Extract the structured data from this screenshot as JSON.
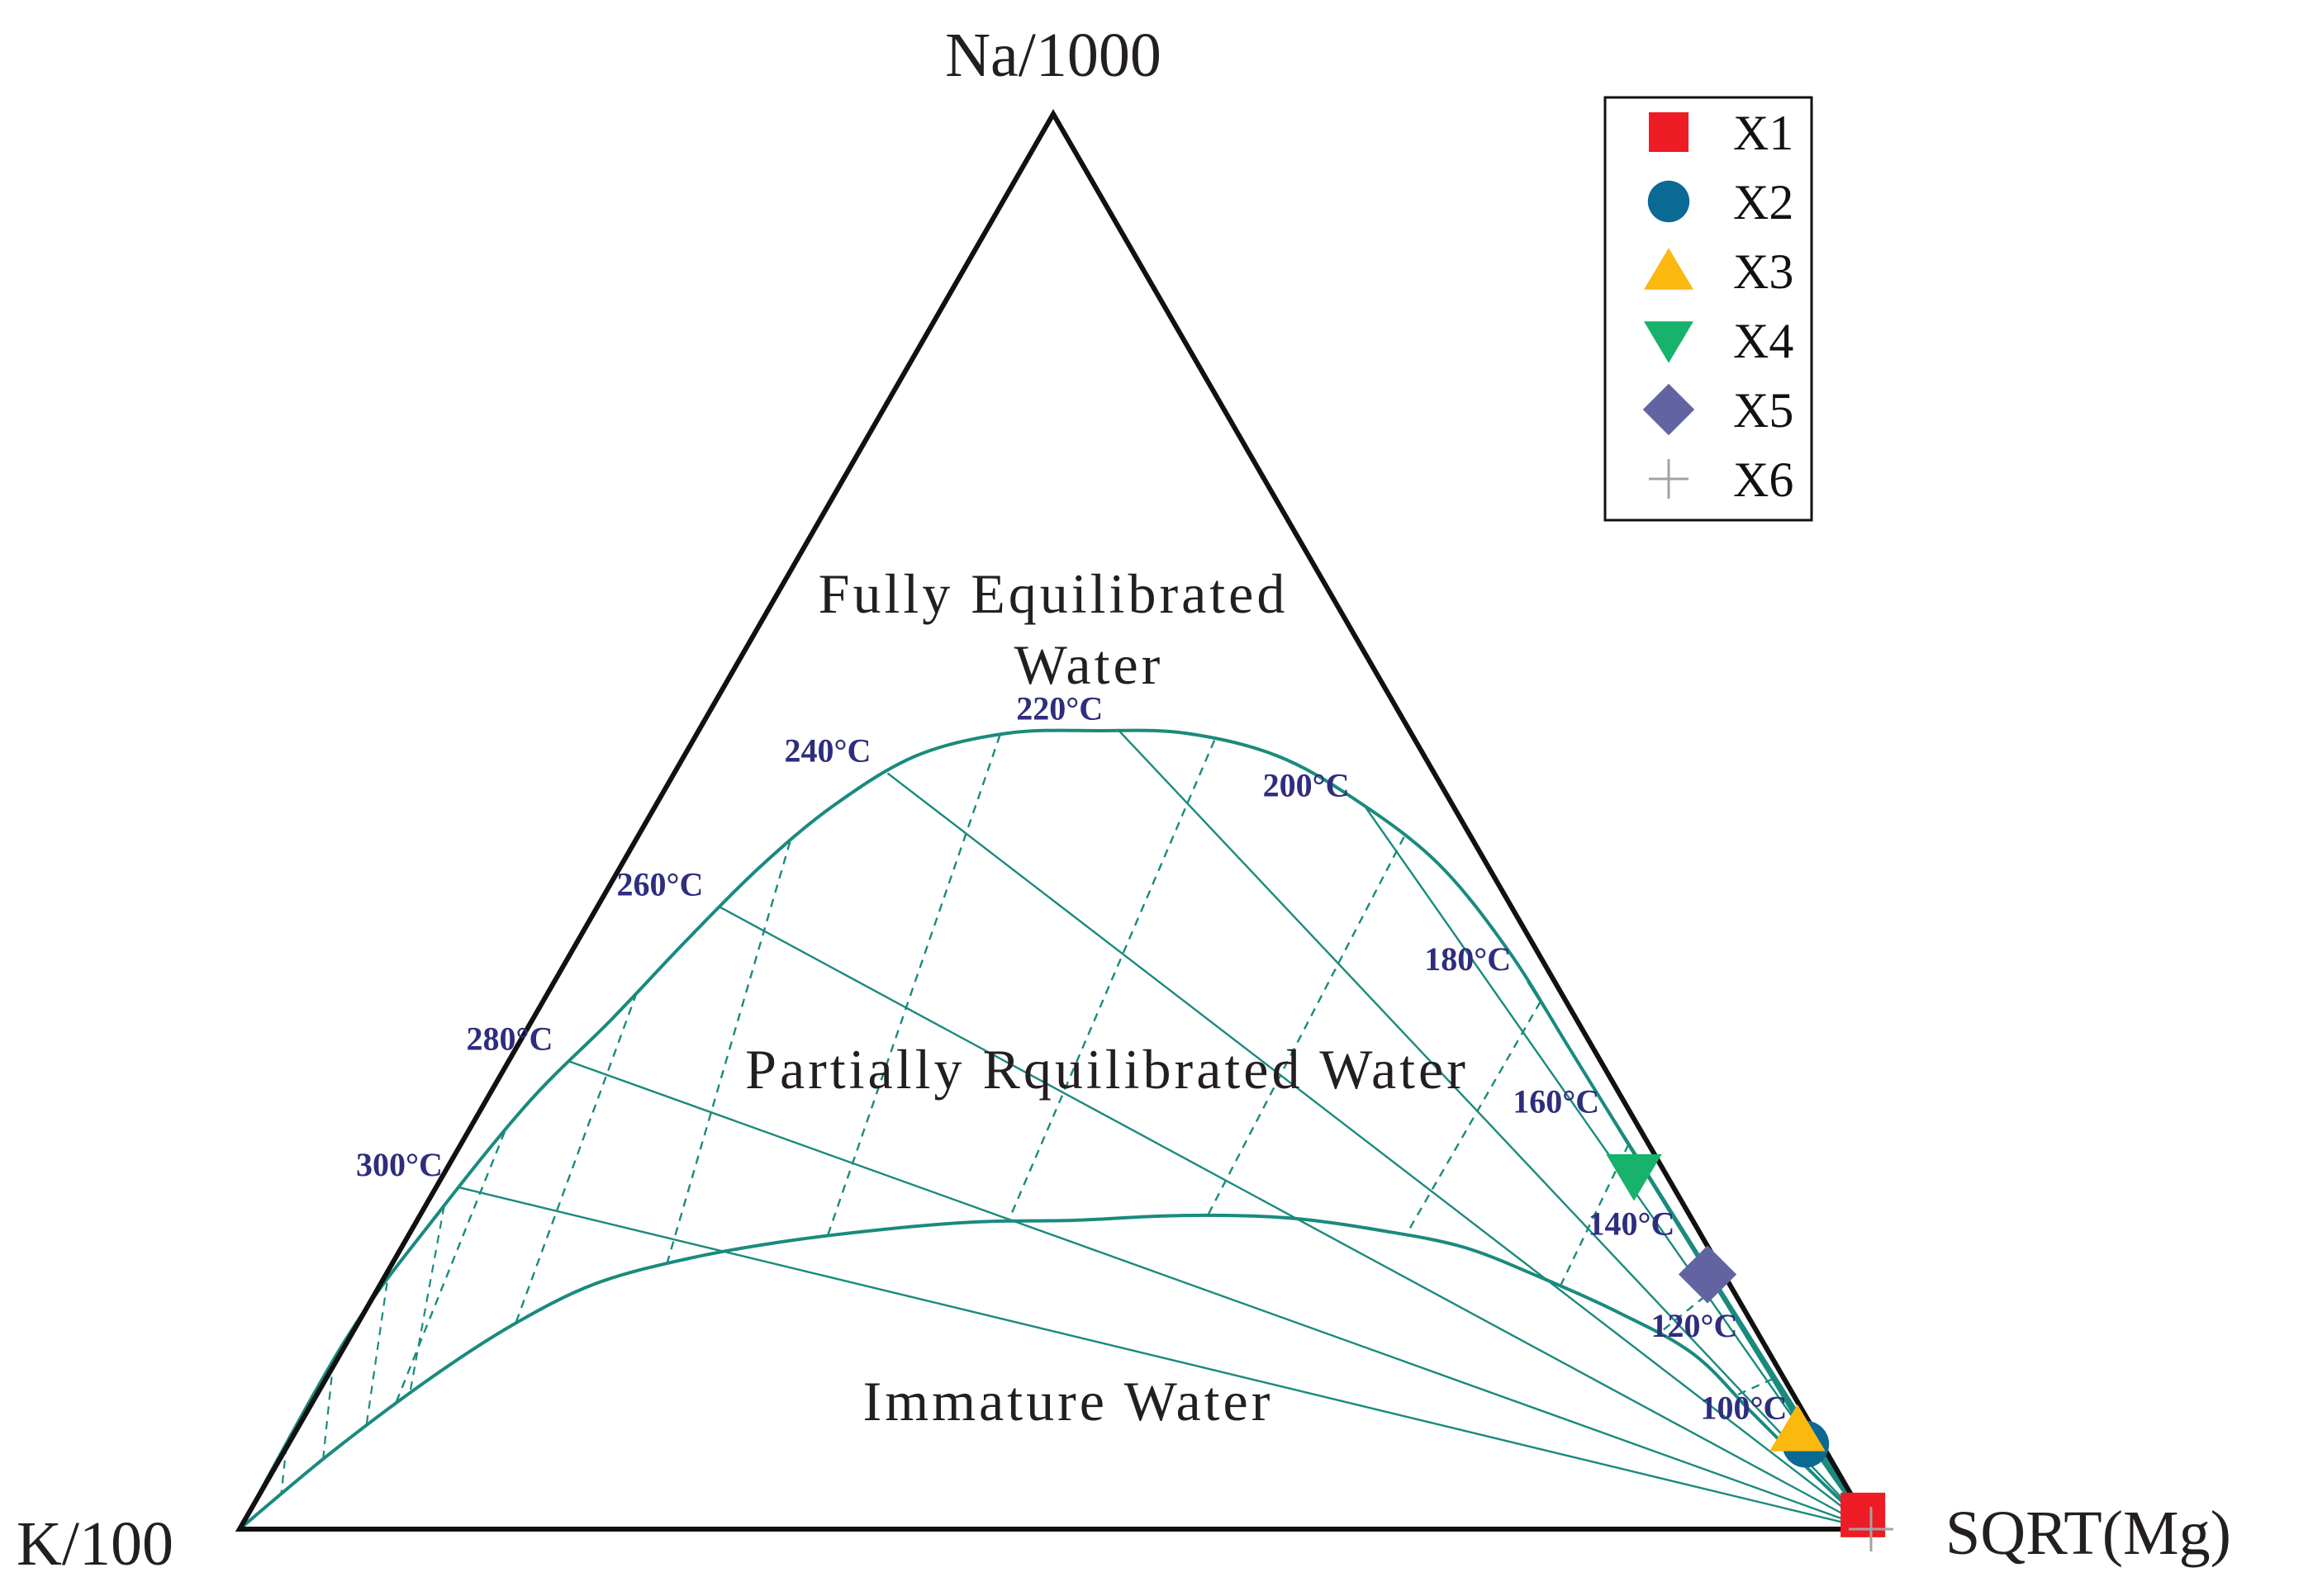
{
  "chart_data": {
    "type": "scatter",
    "subtype": "ternary",
    "vertices": {
      "top": "Na/1000",
      "left": "K/100",
      "right": "SQRT(Mg)"
    },
    "regions": [
      {
        "name": "full",
        "label_lines": [
          "Fully Equilibrated",
          "Water"
        ]
      },
      {
        "name": "partial",
        "label_lines": [
          "Partially Rquilibrated Water"
        ]
      },
      {
        "name": "immature",
        "label_lines": [
          "Immature Water"
        ]
      }
    ],
    "curve_color": "#1a8a7e",
    "temperature_labels": [
      "300°C",
      "280°C",
      "260°C",
      "240°C",
      "220°C",
      "200°C",
      "180°C",
      "160°C",
      "140°C",
      "120°C",
      "100°C"
    ],
    "isotherm_fraction_on_full_curve": [
      0.17,
      0.24,
      0.33,
      0.42,
      0.52,
      0.63,
      0.73,
      0.8,
      0.86,
      0.91,
      0.95
    ],
    "isotherm_fraction_on_partial_curve": [
      0.11,
      0.19,
      0.28,
      0.37,
      0.47,
      0.58,
      0.69,
      0.78,
      0.84,
      0.895,
      0.94
    ],
    "kna_isotherm_fraction_on_full_curve": [
      0.2,
      0.28,
      0.37,
      0.47,
      0.56,
      0.65,
      0.74,
      0.81,
      0.88,
      0.925,
      0.96
    ],
    "legend_position": "top-right",
    "series": [
      {
        "name": "X1",
        "marker": "square",
        "color": "#ee1c25",
        "na": 0.01,
        "k": 0.0,
        "mg": 0.99
      },
      {
        "name": "X2",
        "marker": "circle",
        "color": "#0b6a94",
        "na": 0.06,
        "k": 0.01,
        "mg": 0.93
      },
      {
        "name": "X3",
        "marker": "triangle-up",
        "color": "#fbb80f",
        "na": 0.07,
        "k": 0.01,
        "mg": 0.92
      },
      {
        "name": "X4",
        "marker": "triangle-down",
        "color": "#17b26b",
        "na": 0.25,
        "k": 0.02,
        "mg": 0.73
      },
      {
        "name": "X5",
        "marker": "diamond",
        "color": "#6264a2",
        "na": 0.18,
        "k": 0.01,
        "mg": 0.81
      },
      {
        "name": "X6",
        "marker": "plus",
        "color": "#a3a3a3",
        "na": 0.0,
        "k": 0.0,
        "mg": 1.0
      }
    ]
  }
}
